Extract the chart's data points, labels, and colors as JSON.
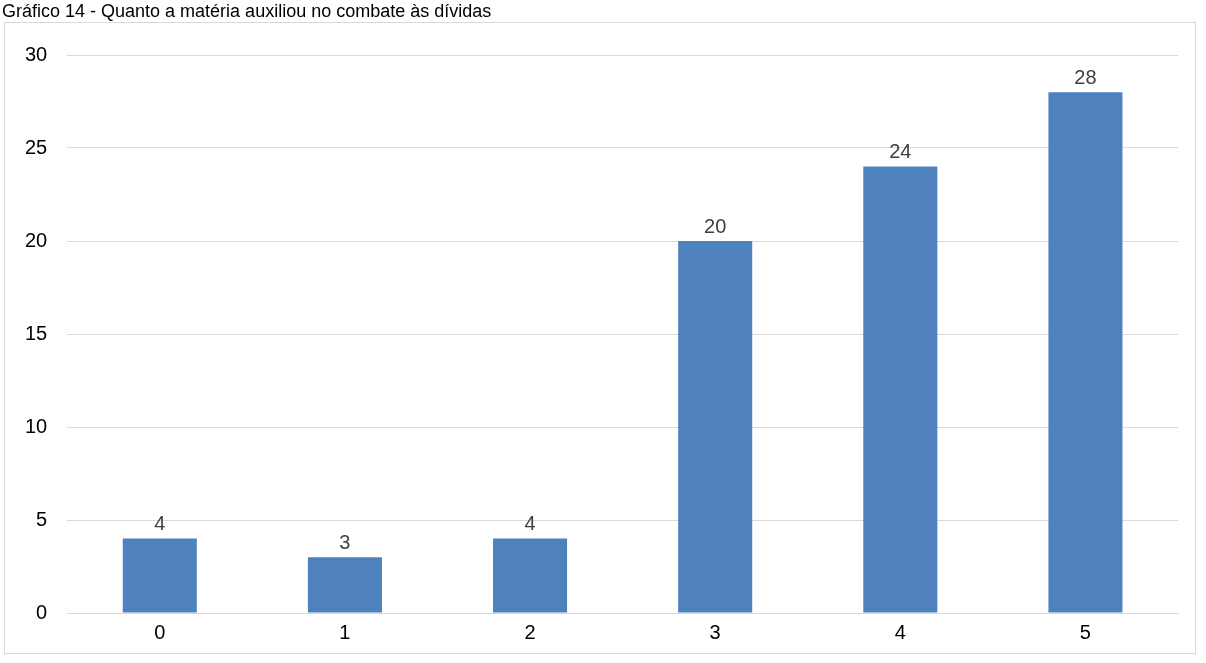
{
  "chart_data": {
    "type": "bar",
    "title": "Gráfico 14 - Quanto a matéria auxiliou no combate às dívidas",
    "categories": [
      "0",
      "1",
      "2",
      "3",
      "4",
      "5"
    ],
    "values": [
      4,
      3,
      4,
      20,
      24,
      28
    ],
    "color": "#4f81bd",
    "ylim": [
      0,
      30
    ],
    "yticks": [
      0,
      5,
      10,
      15,
      20,
      25,
      30
    ],
    "grid": "y",
    "data_labels": true
  }
}
